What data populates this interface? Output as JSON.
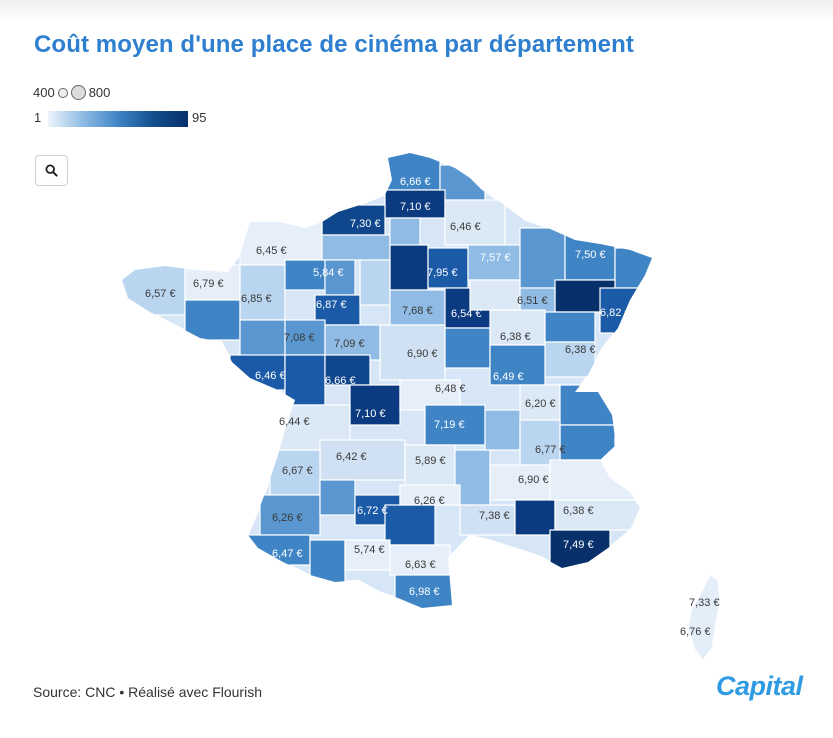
{
  "title": "Coût moyen d'une place de cinéma par département",
  "size_legend": {
    "min": "400",
    "max": "800"
  },
  "color_legend": {
    "min": "1",
    "max": "95"
  },
  "zoom": {
    "icon": "search-icon"
  },
  "map_labels": [
    "6,66 €",
    "7,10 €",
    "7,30 €",
    "6,46 €",
    "6,45 €",
    "5,84 €",
    "7,95 €",
    "7,57 €",
    "7,50 €",
    "6,57 €",
    "6,79 €",
    "6,85 €",
    "6,87 €",
    "7,68 €",
    "6,54 €",
    "6,51 €",
    "6,82 €",
    "7,08 €",
    "7,09 €",
    "6,38 €",
    "6,90 €",
    "6,38 €",
    "6,46 €",
    "6,66 €",
    "6,48 €",
    "6,49 €",
    "7,10 €",
    "6,20 €",
    "6,44 €",
    "7,19 €",
    "6,77 €",
    "6,42 €",
    "5,89 €",
    "6,67 €",
    "6,90 €",
    "6,26 €",
    "6,72 €",
    "7,38 €",
    "6,38 €",
    "6,26 €",
    "7,49 €",
    "6,47 €",
    "5,74 €",
    "6,63 €",
    "6,98 €",
    "7,33 €",
    "6,76 €"
  ],
  "colors": {
    "title": "#2f7fd0",
    "darkest": "#08306b",
    "dark": "#1a5aa6",
    "mid": "#3f85c6",
    "light": "#8fbbe4",
    "pale": "#dbe9f7",
    "brand": "#2e9be3"
  },
  "source": "Source: CNC • Réalisé avec Flourish",
  "brand": "Capital"
}
